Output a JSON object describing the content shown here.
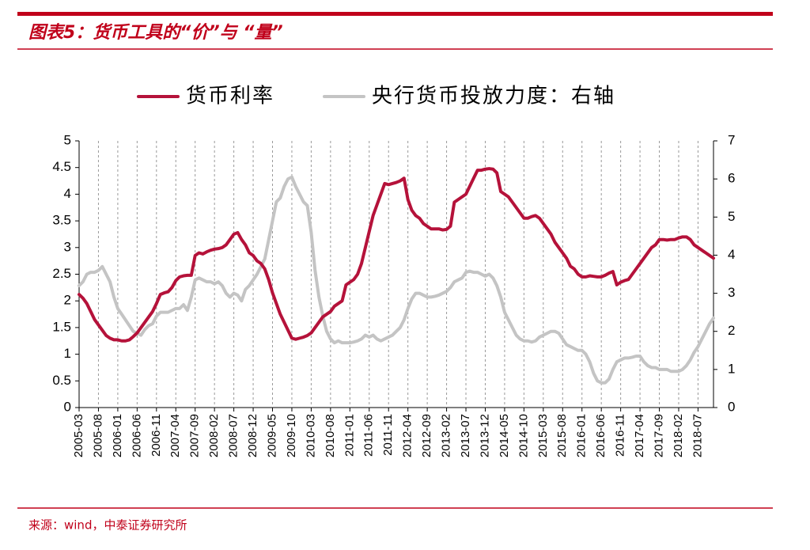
{
  "chart_data": {
    "type": "line",
    "title": "图表5：货币工具的“价”与 “量”",
    "source": "来源：wind，中泰证券研究所",
    "categories": [
      "2005-03",
      null,
      null,
      null,
      null,
      "2005-08",
      null,
      null,
      null,
      null,
      "2006-01",
      null,
      null,
      null,
      null,
      "2006-06",
      null,
      null,
      null,
      null,
      "2006-11",
      null,
      null,
      null,
      null,
      "2007-04",
      null,
      null,
      null,
      null,
      "2007-09",
      null,
      null,
      null,
      null,
      "2008-02",
      null,
      null,
      null,
      null,
      "2008-07",
      null,
      null,
      null,
      null,
      "2008-12",
      null,
      null,
      null,
      null,
      "2009-05",
      null,
      null,
      null,
      null,
      "2009-10",
      null,
      null,
      null,
      null,
      "2010-03",
      null,
      null,
      null,
      null,
      "2010-08",
      null,
      null,
      null,
      null,
      "2011-01",
      null,
      null,
      null,
      null,
      "2011-06",
      null,
      null,
      null,
      null,
      "2011-11",
      null,
      null,
      null,
      null,
      "2012-04",
      null,
      null,
      null,
      null,
      "2012-09",
      null,
      null,
      null,
      null,
      "2013-02",
      null,
      null,
      null,
      null,
      "2013-07",
      null,
      null,
      null,
      null,
      "2013-12",
      null,
      null,
      null,
      null,
      "2014-05",
      null,
      null,
      null,
      null,
      "2014-10",
      null,
      null,
      null,
      null,
      "2015-03",
      null,
      null,
      null,
      null,
      "2015-08",
      null,
      null,
      null,
      null,
      "2016-01",
      null,
      null,
      null,
      null,
      "2016-06",
      null,
      null,
      null,
      null,
      "2016-11",
      null,
      null,
      null,
      null,
      "2017-04",
      null,
      null,
      null,
      null,
      "2017-09",
      null,
      null,
      null,
      null,
      "2018-02",
      null,
      null,
      null,
      null,
      "2018-07",
      null,
      null,
      null,
      null
    ],
    "series": [
      {
        "name": "货币利率",
        "color": "#b5123a",
        "axis": "y",
        "values": [
          2.12,
          2.05,
          1.95,
          1.8,
          1.65,
          1.55,
          1.45,
          1.35,
          1.3,
          1.27,
          1.27,
          1.25,
          1.25,
          1.27,
          1.33,
          1.4,
          1.5,
          1.6,
          1.7,
          1.8,
          1.95,
          2.12,
          2.15,
          2.17,
          2.25,
          2.38,
          2.45,
          2.47,
          2.48,
          2.48,
          2.85,
          2.9,
          2.88,
          2.92,
          2.95,
          2.97,
          2.98,
          3.0,
          3.05,
          3.15,
          3.25,
          3.28,
          3.15,
          3.05,
          2.9,
          2.85,
          2.75,
          2.7,
          2.6,
          2.4,
          2.15,
          1.95,
          1.75,
          1.6,
          1.45,
          1.3,
          1.28,
          1.3,
          1.32,
          1.35,
          1.4,
          1.5,
          1.6,
          1.7,
          1.75,
          1.8,
          1.9,
          1.95,
          2.0,
          2.3,
          2.35,
          2.4,
          2.5,
          2.7,
          3.0,
          3.3,
          3.6,
          3.8,
          4.0,
          4.2,
          4.18,
          4.2,
          4.22,
          4.25,
          4.3,
          3.9,
          3.7,
          3.6,
          3.55,
          3.45,
          3.4,
          3.35,
          3.35,
          3.35,
          3.33,
          3.34,
          3.4,
          3.85,
          3.9,
          3.95,
          4.0,
          4.15,
          4.3,
          4.45,
          4.45,
          4.47,
          4.48,
          4.47,
          4.4,
          4.05,
          4.0,
          3.95,
          3.85,
          3.75,
          3.65,
          3.55,
          3.55,
          3.58,
          3.6,
          3.55,
          3.45,
          3.35,
          3.25,
          3.1,
          3.0,
          2.9,
          2.8,
          2.65,
          2.6,
          2.5,
          2.45,
          2.45,
          2.47,
          2.46,
          2.45,
          2.45,
          2.48,
          2.52,
          2.55,
          2.3,
          2.35,
          2.38,
          2.4,
          2.5,
          2.6,
          2.7,
          2.8,
          2.9,
          3.0,
          3.05,
          3.15,
          3.15,
          3.14,
          3.15,
          3.15,
          3.18,
          3.2,
          3.2,
          3.15,
          3.05,
          3.0,
          2.95,
          2.9,
          2.85,
          2.8
        ]
      },
      {
        "name": "央行货币投放力度：右轴",
        "color": "#c4c4c4",
        "axis": "y2",
        "values": [
          3.2,
          3.3,
          3.5,
          3.55,
          3.55,
          3.6,
          3.7,
          3.5,
          3.3,
          2.9,
          2.6,
          2.45,
          2.3,
          2.15,
          2.0,
          1.95,
          1.9,
          2.05,
          2.15,
          2.2,
          2.4,
          2.5,
          2.5,
          2.5,
          2.55,
          2.6,
          2.6,
          2.7,
          2.55,
          2.9,
          3.35,
          3.4,
          3.35,
          3.3,
          3.3,
          3.25,
          3.3,
          3.2,
          3.0,
          2.9,
          3.0,
          2.95,
          2.8,
          3.1,
          3.2,
          3.35,
          3.5,
          3.7,
          3.9,
          4.4,
          4.9,
          5.4,
          5.5,
          5.8,
          6.0,
          6.05,
          5.8,
          5.6,
          5.4,
          5.3,
          4.6,
          3.6,
          2.9,
          2.4,
          2.0,
          1.8,
          1.7,
          1.75,
          1.7,
          1.7,
          1.7,
          1.72,
          1.75,
          1.8,
          1.9,
          1.85,
          1.9,
          1.8,
          1.75,
          1.8,
          1.85,
          1.9,
          2.0,
          2.1,
          2.3,
          2.6,
          2.85,
          3.0,
          3.0,
          2.95,
          2.9,
          2.9,
          2.92,
          2.95,
          3.0,
          3.05,
          3.15,
          3.3,
          3.35,
          3.4,
          3.55,
          3.58,
          3.55,
          3.55,
          3.5,
          3.45,
          3.5,
          3.4,
          3.2,
          2.9,
          2.5,
          2.3,
          2.1,
          1.9,
          1.8,
          1.75,
          1.75,
          1.72,
          1.75,
          1.85,
          1.9,
          1.95,
          2.0,
          2.0,
          1.95,
          1.8,
          1.65,
          1.6,
          1.55,
          1.5,
          1.5,
          1.4,
          1.2,
          0.9,
          0.7,
          0.65,
          0.65,
          0.75,
          1.0,
          1.2,
          1.25,
          1.3,
          1.3,
          1.32,
          1.35,
          1.35,
          1.2,
          1.1,
          1.05,
          1.05,
          1.0,
          1.0,
          1.0,
          0.95,
          0.95,
          0.95,
          1.0,
          1.1,
          1.25,
          1.45,
          1.6,
          1.8,
          2.0,
          2.2,
          2.35
        ]
      }
    ],
    "ylim": [
      0,
      5
    ],
    "yticks": [
      0,
      0.5,
      1,
      1.5,
      2,
      2.5,
      3,
      3.5,
      4,
      4.5,
      5
    ],
    "y2lim": [
      0,
      7
    ],
    "y2ticks": [
      0,
      1,
      2,
      3,
      4,
      5,
      6,
      7
    ],
    "grid": "x-dashed",
    "legend": "top"
  }
}
